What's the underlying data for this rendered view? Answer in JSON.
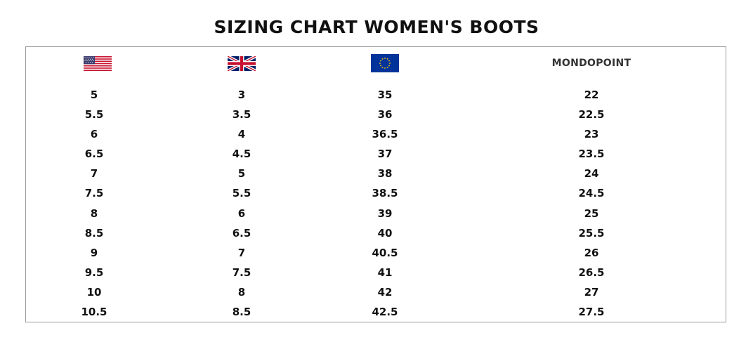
{
  "title": "SIZING CHART WOMEN'S BOOTS",
  "columns": [
    {
      "key": "us",
      "icon": "us-flag-icon"
    },
    {
      "key": "uk",
      "icon": "uk-flag-icon"
    },
    {
      "key": "eu",
      "icon": "eu-flag-icon"
    },
    {
      "key": "mondopoint",
      "label": "MONDOPOINT"
    }
  ],
  "colors": {
    "text": "#111111",
    "border": "#9a9a9a",
    "us_red": "#c8102e",
    "us_blue": "#3c3b6e",
    "uk_blue": "#012169",
    "uk_red": "#c8102e",
    "eu_blue": "#003399",
    "eu_gold": "#ffcc00"
  },
  "rows": [
    {
      "us": "5",
      "uk": "3",
      "eu": "35",
      "mondopoint": "22"
    },
    {
      "us": "5.5",
      "uk": "3.5",
      "eu": "36",
      "mondopoint": "22.5"
    },
    {
      "us": "6",
      "uk": "4",
      "eu": "36.5",
      "mondopoint": "23"
    },
    {
      "us": "6.5",
      "uk": "4.5",
      "eu": "37",
      "mondopoint": "23.5"
    },
    {
      "us": "7",
      "uk": "5",
      "eu": "38",
      "mondopoint": "24"
    },
    {
      "us": "7.5",
      "uk": "5.5",
      "eu": "38.5",
      "mondopoint": "24.5"
    },
    {
      "us": "8",
      "uk": "6",
      "eu": "39",
      "mondopoint": "25"
    },
    {
      "us": "8.5",
      "uk": "6.5",
      "eu": "40",
      "mondopoint": "25.5"
    },
    {
      "us": "9",
      "uk": "7",
      "eu": "40.5",
      "mondopoint": "26"
    },
    {
      "us": "9.5",
      "uk": "7.5",
      "eu": "41",
      "mondopoint": "26.5"
    },
    {
      "us": "10",
      "uk": "8",
      "eu": "42",
      "mondopoint": "27"
    },
    {
      "us": "10.5",
      "uk": "8.5",
      "eu": "42.5",
      "mondopoint": "27.5"
    }
  ]
}
